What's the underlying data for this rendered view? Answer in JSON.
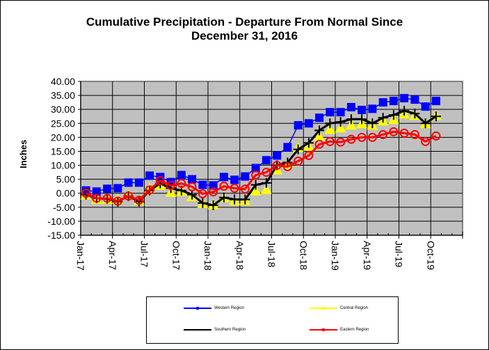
{
  "chart_data": {
    "type": "line",
    "title_line1": "Cumulative Precipitation - Departure From Normal Since",
    "title_line2": "December 31, 2016",
    "ylabel": "Inches",
    "xlabel": "",
    "ylim": [
      -15,
      40
    ],
    "ytick_step": 5,
    "yticks": [
      "40.00",
      "35.00",
      "30.00",
      "25.00",
      "20.00",
      "15.00",
      "10.00",
      "5.00",
      "0.00",
      "-5.00",
      "-10.00",
      "-15.00"
    ],
    "xtick_labels": [
      "Jan-17",
      "Apr-17",
      "Jul-17",
      "Oct-17",
      "Jan-18",
      "Apr-18",
      "Jul-18",
      "Oct-18",
      "Jan-19",
      "Apr-19",
      "Jul-19",
      "Oct-19"
    ],
    "months_total": 36,
    "grid": true,
    "legend_position": "bottom",
    "x": [
      "Jan-17",
      "Feb-17",
      "Mar-17",
      "Apr-17",
      "May-17",
      "Jun-17",
      "Jul-17",
      "Aug-17",
      "Sep-17",
      "Oct-17",
      "Nov-17",
      "Dec-17",
      "Jan-18",
      "Feb-18",
      "Mar-18",
      "Apr-18",
      "May-18",
      "Jun-18",
      "Jul-18",
      "Aug-18",
      "Sep-18",
      "Oct-18",
      "Nov-18",
      "Dec-18",
      "Jan-19",
      "Feb-19",
      "Mar-19",
      "Apr-19",
      "May-19",
      "Jun-19",
      "Jul-19",
      "Aug-19",
      "Sep-19",
      "Oct-19"
    ],
    "series": [
      {
        "name": "Western Region",
        "color": "#0000FF",
        "marker": "square",
        "values": [
          1.0,
          0.6,
          1.6,
          1.8,
          3.8,
          3.8,
          6.3,
          5.8,
          4.0,
          6.5,
          5.0,
          3.0,
          2.8,
          5.8,
          4.8,
          6.0,
          9.0,
          11.8,
          13.5,
          16.5,
          24.3,
          25.0,
          27.0,
          29.0,
          29.0,
          30.8,
          29.8,
          30.2,
          32.5,
          33.0,
          34.0,
          33.5,
          31.0,
          33.0
        ]
      },
      {
        "name": "Central Region",
        "color": "#FFFF00",
        "marker": "triangle",
        "values": [
          -1.0,
          -2.5,
          -2.5,
          -2.5,
          -1.0,
          -3.0,
          1.5,
          2.5,
          0.0,
          0.3,
          -1.5,
          -4.0,
          -4.5,
          -2.0,
          -3.0,
          -3.0,
          0.5,
          1.0,
          8.0,
          10.0,
          16.0,
          16.5,
          20.0,
          22.5,
          23.0,
          24.0,
          24.5,
          24.0,
          25.5,
          26.0,
          28.0,
          27.5,
          24.5,
          27.5
        ]
      },
      {
        "name": "Southern Region",
        "color": "#000000",
        "marker": "plus",
        "values": [
          -0.5,
          -1.8,
          -2.0,
          -3.0,
          -1.0,
          -3.0,
          1.0,
          3.5,
          1.8,
          1.0,
          -0.5,
          -3.5,
          -4.3,
          -1.5,
          -2.2,
          -2.2,
          3.0,
          3.7,
          10.0,
          11.0,
          15.7,
          18.0,
          22.5,
          25.0,
          25.5,
          26.5,
          26.5,
          25.0,
          27.0,
          28.0,
          29.5,
          28.5,
          25.0,
          27.5
        ]
      },
      {
        "name": "Eastern Region",
        "color": "#FF0000",
        "marker": "circle",
        "values": [
          0.0,
          -1.8,
          -1.8,
          -2.8,
          -1.0,
          -2.5,
          1.2,
          4.5,
          2.8,
          3.5,
          2.3,
          -0.2,
          0.5,
          2.5,
          1.8,
          1.5,
          6.5,
          7.5,
          10.0,
          9.5,
          11.5,
          13.5,
          17.5,
          18.5,
          18.3,
          19.3,
          20.0,
          20.0,
          21.0,
          22.0,
          21.5,
          21.0,
          18.5,
          20.5
        ]
      }
    ]
  }
}
